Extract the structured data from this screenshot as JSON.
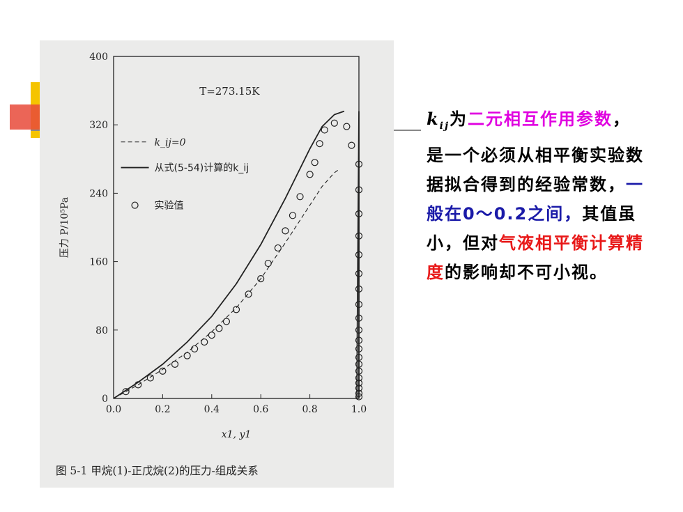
{
  "chart_data": {
    "type": "line",
    "annotation": "T=273.15K",
    "xlabel": "x1, y1",
    "ylabel": "压力 P/10⁵Pa",
    "xlim": [
      0,
      1.0
    ],
    "ylim": [
      0,
      400
    ],
    "xticks": [
      "0.0",
      "0.2",
      "0.4",
      "0.6",
      "0.8",
      "1.0"
    ],
    "yticks": [
      "0",
      "80",
      "160",
      "240",
      "320",
      "400"
    ],
    "legend": [
      "k_ij=0",
      "从式(5-54)计算的k_ij",
      "实验值"
    ],
    "series": [
      {
        "name": "k_ij=0",
        "style": "dashed",
        "x": [
          0.0,
          0.1,
          0.2,
          0.3,
          0.4,
          0.5,
          0.6,
          0.7,
          0.8,
          0.85,
          0.9,
          0.92
        ],
        "y": [
          0,
          16,
          34,
          54,
          78,
          106,
          140,
          182,
          226,
          248,
          264,
          268
        ]
      },
      {
        "name": "从式(5-54)计算的k_ij",
        "style": "solid",
        "x": [
          0.0,
          0.1,
          0.2,
          0.3,
          0.4,
          0.5,
          0.6,
          0.7,
          0.8,
          0.85,
          0.9,
          0.94
        ],
        "y": [
          0,
          19,
          40,
          66,
          96,
          134,
          180,
          234,
          292,
          318,
          332,
          336
        ]
      },
      {
        "name": "从式(5-54)计算的k_ij dew",
        "style": "solid",
        "x": [
          0.992,
          0.993,
          0.995,
          0.997,
          0.999,
          1.0,
          1.0
        ],
        "y": [
          0,
          60,
          140,
          220,
          290,
          336,
          0
        ]
      },
      {
        "name": "实验值",
        "style": "markers",
        "x": [
          0.05,
          0.1,
          0.15,
          0.2,
          0.25,
          0.3,
          0.33,
          0.37,
          0.4,
          0.43,
          0.46,
          0.5,
          0.55,
          0.6,
          0.63,
          0.67,
          0.7,
          0.73,
          0.76,
          0.8,
          0.82,
          0.84,
          0.86,
          0.9,
          0.95,
          0.97,
          1.0,
          1.0,
          1.0,
          1.0,
          1.0,
          1.0,
          1.0,
          1.0,
          1.0,
          1.0,
          1.0,
          1.0,
          1.0,
          1.0,
          1.0,
          1.0,
          1.0,
          1.0,
          1.0,
          1.0
        ],
        "y": [
          8,
          16,
          24,
          32,
          40,
          50,
          58,
          66,
          74,
          82,
          90,
          104,
          122,
          140,
          158,
          176,
          196,
          214,
          236,
          262,
          276,
          298,
          314,
          322,
          318,
          296,
          274,
          244,
          216,
          190,
          168,
          146,
          128,
          110,
          94,
          80,
          68,
          58,
          48,
          40,
          32,
          24,
          18,
          12,
          6,
          2
        ]
      }
    ]
  },
  "caption": "图 5-1   甲烷(1)-正戊烷(2)的压力-组成关系",
  "text": {
    "seg1_kij": "k",
    "seg1_sub": "ij",
    "seg1_rest": "为",
    "seg2": "二元相互作用参数",
    "seg3": "，是一个必须从相平衡实验数据拟合得到的经验常数，",
    "seg4": "一般在0～0.2之间，",
    "seg5": "其值虽小，但对",
    "seg6": "气液相平衡计算精度",
    "seg7": "的影响却不可小视。"
  },
  "colors": {
    "magenta": "#e000e0",
    "blue": "#1a1aa8",
    "red": "#e81818"
  }
}
